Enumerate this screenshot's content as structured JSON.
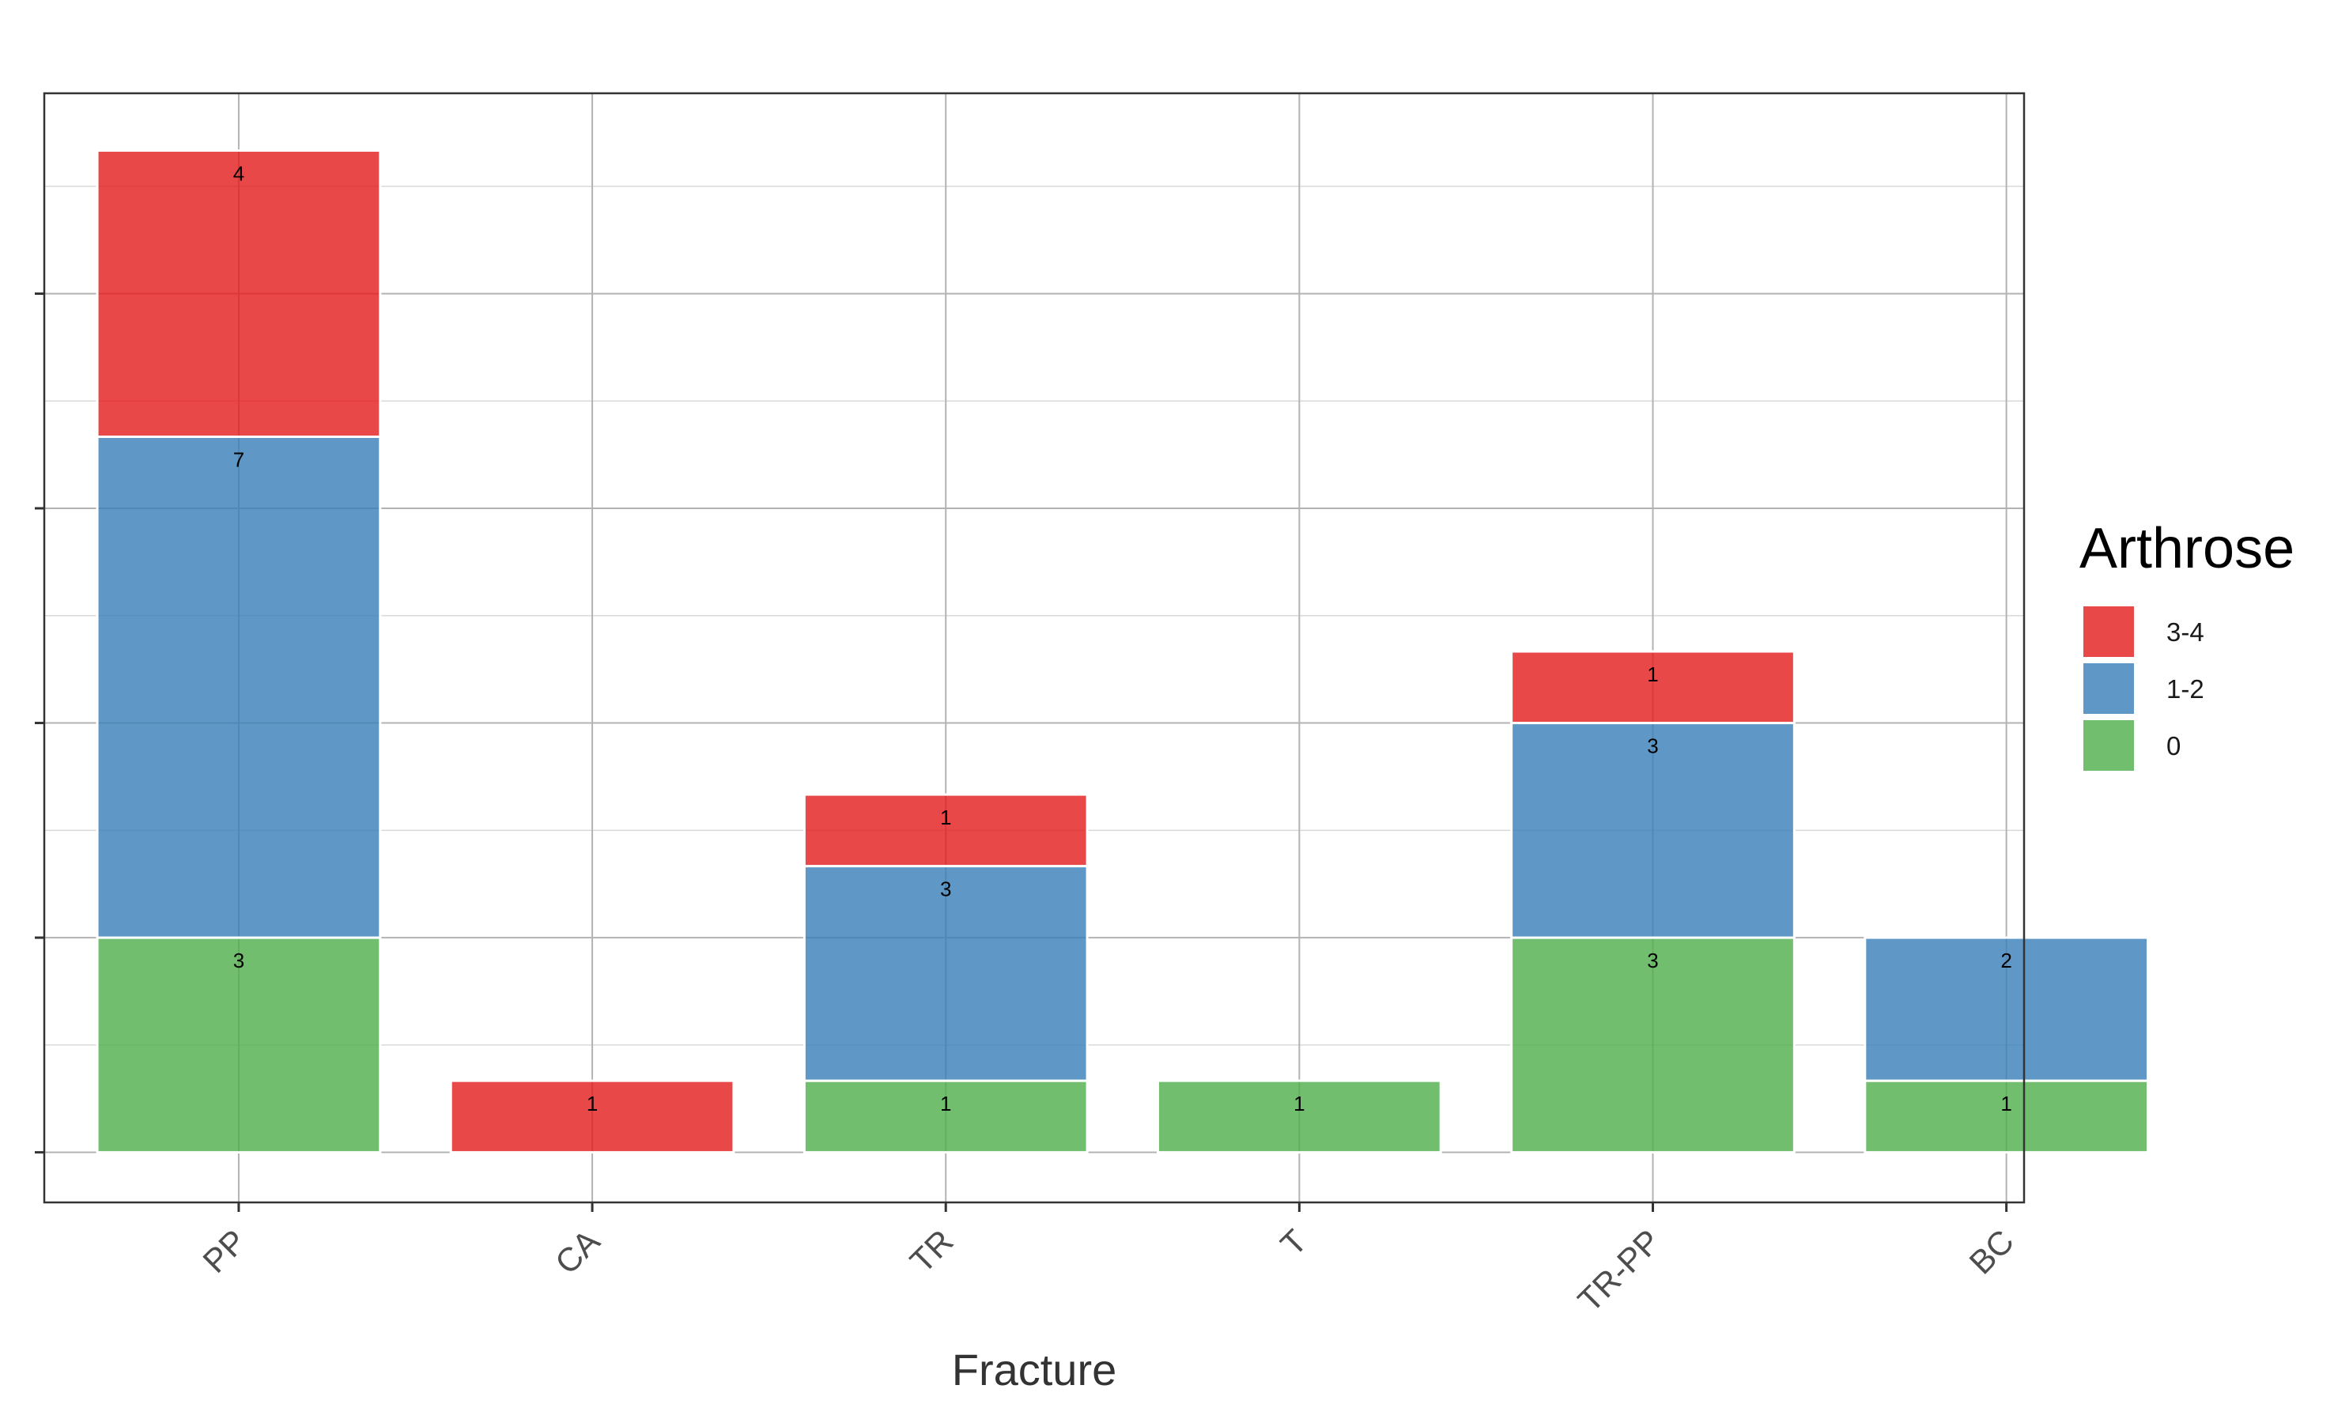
{
  "chart_data": {
    "type": "bar",
    "stacked": true,
    "categories": [
      "PP",
      "CA",
      "TR",
      "T",
      "TR-PP",
      "BC"
    ],
    "series": [
      {
        "name": "0",
        "color": "#4DAF4A",
        "values": [
          3,
          0,
          1,
          1,
          3,
          1
        ]
      },
      {
        "name": "1-2",
        "color": "#377EB8",
        "values": [
          7,
          0,
          3,
          0,
          3,
          2
        ]
      },
      {
        "name": "3-4",
        "color": "#E41A1C",
        "values": [
          4,
          1,
          1,
          0,
          1,
          0
        ]
      }
    ],
    "xlabel": "Fracture",
    "ylabel": "",
    "ylim": [
      -0.7,
      14.8
    ],
    "y_ticks": [
      0,
      3,
      6,
      9,
      12
    ],
    "y_minor_ticks": [
      1.5,
      4.5,
      7.5,
      10.5,
      13.5
    ],
    "grid": true,
    "show_y_tick_labels": false,
    "legend": {
      "title": "Arthrose",
      "position": "right",
      "order": [
        "3-4",
        "1-2",
        "0"
      ]
    }
  }
}
